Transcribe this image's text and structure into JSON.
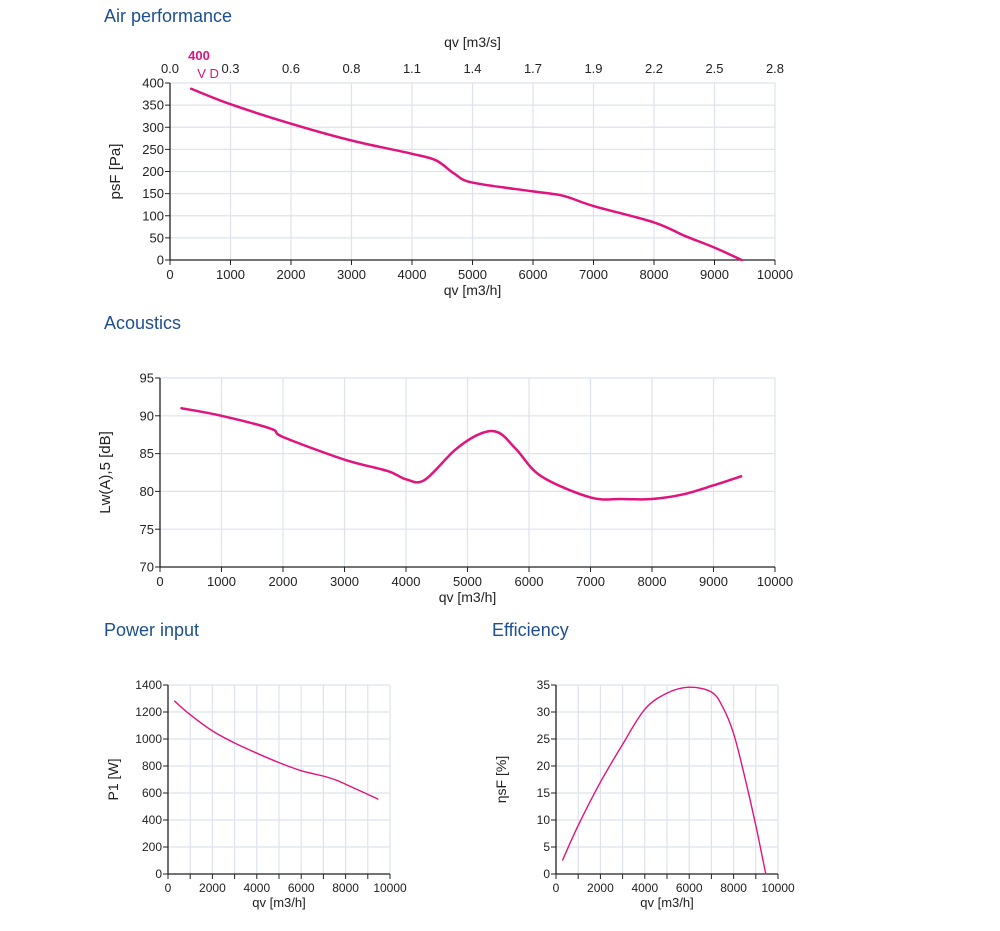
{
  "sections": {
    "air": "Air performance",
    "acoustics": "Acoustics",
    "power": "Power input",
    "efficiency": "Efficiency"
  },
  "curve_color": "#e0147c",
  "title_color": "#1d4f91",
  "chart_data": [
    {
      "type": "line",
      "title": "Air performance",
      "xlabel": "qv [m3/h]",
      "ylabel": "psF [Pa]",
      "x2label": "qv [m3/s]",
      "x2_ticks": [
        "0.0",
        "0.3",
        "0.6",
        "0.8",
        "1.1",
        "1.4",
        "1.7",
        "1.9",
        "2.2",
        "2.5",
        "2.8"
      ],
      "curve_label": [
        "400",
        "V D"
      ],
      "xlim": [
        0,
        10000
      ],
      "ylim": [
        0,
        400
      ],
      "xticks": [
        0,
        1000,
        2000,
        3000,
        4000,
        5000,
        6000,
        7000,
        8000,
        9000,
        10000
      ],
      "yticks": [
        0,
        50,
        100,
        150,
        200,
        250,
        300,
        350,
        400
      ],
      "grid": true,
      "series": [
        {
          "x": [
            350,
            1000,
            2000,
            3000,
            4000,
            4400,
            4700,
            5000,
            6000,
            6500,
            7000,
            8000,
            8500,
            9000,
            9450
          ],
          "y": [
            387,
            352,
            308,
            270,
            240,
            225,
            195,
            175,
            155,
            145,
            122,
            85,
            55,
            28,
            0
          ]
        }
      ]
    },
    {
      "type": "line",
      "title": "Acoustics",
      "xlabel": "qv [m3/h]",
      "ylabel": "Lw(A),5 [dB]",
      "xlim": [
        0,
        10000
      ],
      "ylim": [
        70,
        95
      ],
      "xticks": [
        0,
        1000,
        2000,
        3000,
        4000,
        5000,
        6000,
        7000,
        8000,
        9000,
        10000
      ],
      "yticks": [
        70,
        75,
        80,
        85,
        90,
        95
      ],
      "grid": true,
      "series": [
        {
          "x": [
            350,
            1000,
            1800,
            2000,
            3000,
            3700,
            4000,
            4300,
            4800,
            5200,
            5500,
            5800,
            6200,
            7000,
            7500,
            8000,
            8500,
            9000,
            9450
          ],
          "y": [
            91,
            90,
            88.3,
            87.2,
            84.2,
            82.7,
            81.6,
            81.5,
            85.5,
            87.6,
            87.8,
            85.5,
            82,
            79.2,
            79,
            79,
            79.6,
            80.8,
            82
          ]
        }
      ]
    },
    {
      "type": "line",
      "title": "Power input",
      "xlabel": "qv [m3/h]",
      "ylabel": "P1 [W]",
      "xlim": [
        0,
        10000
      ],
      "ylim": [
        0,
        1400
      ],
      "xticks": [
        0,
        2000,
        4000,
        6000,
        8000,
        10000
      ],
      "yticks": [
        0,
        200,
        400,
        600,
        800,
        1000,
        1200,
        1400
      ],
      "grid": true,
      "series": [
        {
          "x": [
            300,
            1000,
            2000,
            3000,
            4000,
            5000,
            6000,
            7000,
            7500,
            8000,
            9000,
            9450
          ],
          "y": [
            1280,
            1180,
            1060,
            970,
            895,
            825,
            765,
            725,
            700,
            665,
            590,
            555
          ]
        }
      ]
    },
    {
      "type": "line",
      "title": "Efficiency",
      "xlabel": "qv [m3/h]",
      "ylabel": "ηsF [%]",
      "xlim": [
        0,
        10000
      ],
      "ylim": [
        0,
        35
      ],
      "xticks": [
        0,
        2000,
        4000,
        6000,
        8000,
        10000
      ],
      "yticks": [
        0,
        5,
        10,
        15,
        20,
        25,
        30,
        35
      ],
      "grid": true,
      "series": [
        {
          "x": [
            300,
            1000,
            2000,
            3000,
            4000,
            5000,
            6000,
            7000,
            7500,
            8000,
            8500,
            9000,
            9300,
            9450
          ],
          "y": [
            2.6,
            9,
            17,
            24,
            30.5,
            33.5,
            34.6,
            33.7,
            31,
            26,
            18,
            9,
            3,
            0
          ]
        }
      ]
    }
  ]
}
